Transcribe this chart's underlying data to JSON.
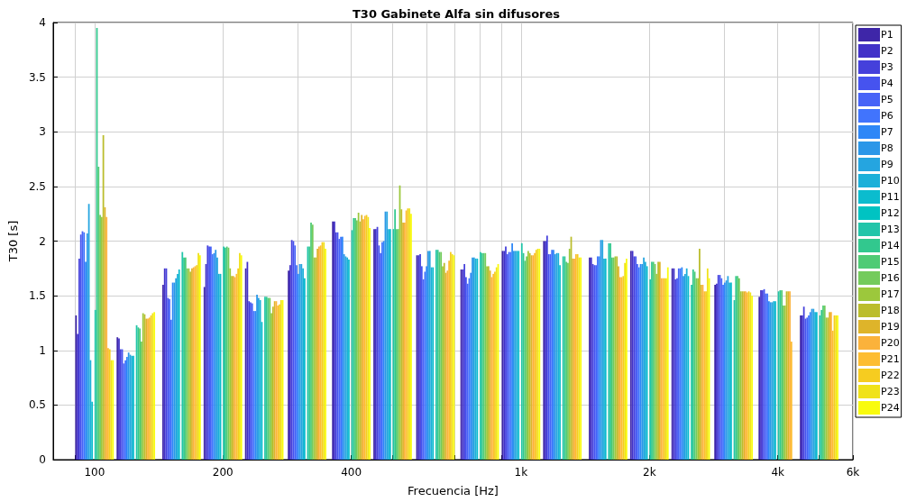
{
  "chart_data": {
    "type": "bar",
    "title": "T30 Gabinete Alfa sin difusores",
    "xlabel": "Frecuencia [Hz]",
    "ylabel": "T30 [s]",
    "x": [
      100,
      125,
      160,
      200,
      250,
      315,
      400,
      500,
      630,
      800,
      1000,
      1250,
      1600,
      2000,
      2500,
      3150,
      4000,
      5000
    ],
    "log": "x",
    "xlim": [
      80,
      6000
    ],
    "xticks": [
      {
        "value": 90,
        "label": null
      },
      100,
      200,
      {
        "value": 300,
        "label": null
      },
      400,
      {
        "value": 500,
        "label": null
      },
      {
        "value": 600,
        "label": null
      },
      {
        "value": 700,
        "label": null
      },
      {
        "value": 800,
        "label": null
      },
      {
        "value": 900,
        "label": null
      },
      {
        "value": 1000,
        "label": "1k"
      },
      {
        "value": 2000,
        "label": "2k"
      },
      {
        "value": 3000,
        "label": null
      },
      {
        "value": 4000,
        "label": "4k"
      },
      {
        "value": 5000,
        "label": null
      },
      {
        "value": 6000,
        "label": "6k"
      }
    ],
    "ylim": [
      0,
      4
    ],
    "yticks": [
      0,
      0.5,
      1,
      1.5,
      2,
      2.5,
      3,
      3.5,
      4
    ],
    "grid": true,
    "legend": "right",
    "series": [
      {
        "name": "P1",
        "color": "#3e26a8",
        "values": [
          1.32,
          1.12,
          1.6,
          1.58,
          1.75,
          1.73,
          2.18,
          2.11,
          1.87,
          1.74,
          1.91,
          2.0,
          1.85,
          1.91,
          1.75,
          1.6,
          1.49,
          1.32
        ]
      },
      {
        "name": "P2",
        "color": "#4232c8",
        "values": [
          1.15,
          1.11,
          1.75,
          1.79,
          1.81,
          1.78,
          2.18,
          2.11,
          1.87,
          1.74,
          1.91,
          2.0,
          1.85,
          1.91,
          1.75,
          1.61,
          1.55,
          1.32
        ]
      },
      {
        "name": "P3",
        "color": "#4540db",
        "values": [
          1.84,
          1.01,
          1.75,
          1.96,
          1.45,
          2.01,
          2.08,
          2.13,
          1.88,
          1.79,
          1.95,
          2.05,
          1.79,
          1.86,
          1.65,
          1.69,
          1.55,
          1.4
        ]
      },
      {
        "name": "P4",
        "color": "#4653ef",
        "values": [
          2.06,
          1.01,
          1.48,
          1.95,
          1.44,
          2.0,
          2.08,
          1.96,
          1.77,
          1.67,
          1.88,
          1.88,
          1.78,
          1.86,
          1.66,
          1.69,
          1.56,
          1.29
        ]
      },
      {
        "name": "P5",
        "color": "#4763f7",
        "values": [
          2.09,
          0.88,
          1.47,
          1.95,
          1.43,
          1.96,
          2.02,
          1.89,
          1.65,
          1.61,
          1.9,
          1.88,
          1.78,
          1.79,
          1.75,
          1.66,
          1.52,
          1.3
        ]
      },
      {
        "name": "P6",
        "color": "#4174fd",
        "values": [
          2.08,
          0.91,
          1.28,
          1.88,
          1.36,
          1.78,
          2.04,
          1.99,
          1.72,
          1.66,
          1.9,
          1.92,
          1.86,
          1.76,
          1.75,
          1.6,
          1.52,
          1.32
        ]
      },
      {
        "name": "P7",
        "color": "#2e87f7",
        "values": [
          1.81,
          0.94,
          1.62,
          1.89,
          1.36,
          1.7,
          2.04,
          2.0,
          1.77,
          1.71,
          1.98,
          1.92,
          1.86,
          1.79,
          1.76,
          1.62,
          1.45,
          1.35
        ]
      },
      {
        "name": "P8",
        "color": "#2b97e8",
        "values": [
          2.07,
          0.98,
          1.62,
          1.92,
          1.51,
          1.79,
          1.88,
          2.27,
          1.91,
          1.85,
          1.91,
          1.88,
          2.01,
          1.79,
          1.68,
          1.64,
          1.44,
          1.38
        ]
      },
      {
        "name": "P9",
        "color": "#25a5e0",
        "values": [
          2.34,
          0.96,
          1.66,
          1.85,
          1.48,
          1.79,
          1.86,
          2.27,
          1.91,
          1.85,
          1.91,
          1.89,
          2.01,
          1.85,
          1.7,
          1.68,
          1.44,
          1.38
        ]
      },
      {
        "name": "P10",
        "color": "#1cb0d9",
        "values": [
          0.91,
          0.95,
          1.7,
          1.7,
          1.46,
          1.75,
          1.85,
          2.11,
          1.76,
          1.84,
          1.91,
          1.89,
          1.84,
          1.81,
          1.75,
          1.62,
          1.45,
          1.35
        ]
      },
      {
        "name": "P11",
        "color": "#0bbcce",
        "values": [
          0.53,
          0.95,
          1.74,
          1.7,
          1.26,
          1.66,
          1.83,
          2.11,
          1.76,
          1.84,
          1.91,
          1.78,
          1.84,
          1.77,
          1.68,
          1.62,
          1.45,
          1.35
        ]
      },
      {
        "name": "P12",
        "color": "#00c3c2",
        "values": [
          null,
          null,
          null,
          null,
          null,
          null,
          null,
          null,
          null,
          null,
          null,
          null,
          null,
          null,
          null,
          null,
          null,
          null
        ]
      },
      {
        "name": "P13",
        "color": "#22c5a9",
        "values": [
          1.37,
          1.23,
          1.9,
          1.95,
          1.49,
          1.95,
          2.1,
          2.11,
          1.92,
          1.9,
          1.98,
          1.86,
          1.98,
          1.65,
          1.6,
          1.46,
          1.54,
          1.32
        ]
      },
      {
        "name": "P14",
        "color": "#32c88e",
        "values": [
          3.95,
          1.21,
          1.85,
          1.94,
          1.49,
          1.95,
          2.21,
          2.29,
          1.92,
          1.89,
          1.89,
          1.86,
          1.98,
          1.81,
          1.74,
          1.68,
          1.55,
          1.37
        ]
      },
      {
        "name": "P15",
        "color": "#4fcb75",
        "values": [
          2.68,
          1.2,
          1.85,
          1.95,
          1.48,
          2.17,
          2.21,
          2.11,
          1.9,
          1.89,
          1.82,
          1.81,
          1.85,
          1.81,
          1.72,
          1.68,
          1.55,
          1.41
        ]
      },
      {
        "name": "P16",
        "color": "#74cb5c",
        "values": [
          2.24,
          1.08,
          1.75,
          1.94,
          1.48,
          2.15,
          2.19,
          2.11,
          1.9,
          1.89,
          1.86,
          1.8,
          1.85,
          1.79,
          1.66,
          1.66,
          1.41,
          1.41
        ]
      },
      {
        "name": "P17",
        "color": "#9cc83c",
        "values": [
          2.22,
          1.34,
          1.75,
          1.75,
          1.34,
          1.85,
          2.26,
          2.51,
          1.77,
          1.77,
          1.91,
          1.93,
          1.86,
          1.7,
          1.66,
          1.54,
          1.41,
          1.3
        ]
      },
      {
        "name": "P18",
        "color": "#bbbd2c",
        "values": [
          2.97,
          1.33,
          1.72,
          1.68,
          1.4,
          1.85,
          2.18,
          2.29,
          1.8,
          1.77,
          1.89,
          2.04,
          1.86,
          1.81,
          1.93,
          1.54,
          1.54,
          1.3
        ]
      },
      {
        "name": "P19",
        "color": "#deb42a",
        "values": [
          2.31,
          1.29,
          1.75,
          1.68,
          1.45,
          1.93,
          2.24,
          2.17,
          1.71,
          1.73,
          1.87,
          1.84,
          1.77,
          1.81,
          1.6,
          1.54,
          1.54,
          1.35
        ]
      },
      {
        "name": "P20",
        "color": "#fbb23b",
        "values": [
          2.22,
          1.29,
          1.76,
          1.67,
          1.45,
          1.95,
          2.2,
          2.17,
          1.73,
          1.67,
          1.87,
          1.84,
          1.67,
          1.66,
          1.6,
          1.54,
          1.54,
          1.35
        ]
      },
      {
        "name": "P21",
        "color": "#fdbd32",
        "values": [
          1.02,
          1.3,
          1.77,
          1.7,
          1.41,
          1.96,
          2.23,
          2.28,
          1.82,
          1.7,
          1.89,
          1.88,
          1.67,
          1.66,
          1.54,
          1.53,
          1.08,
          1.18
        ]
      },
      {
        "name": "P22",
        "color": "#f6cc20",
        "values": [
          1.01,
          1.32,
          1.78,
          1.75,
          1.42,
          1.99,
          2.24,
          2.3,
          1.9,
          1.72,
          1.92,
          1.88,
          1.68,
          1.66,
          1.54,
          1.54,
          0,
          1.32
        ]
      },
      {
        "name": "P23",
        "color": "#f0e21a",
        "values": [
          0.91,
          1.34,
          1.89,
          1.89,
          1.46,
          1.99,
          2.22,
          2.3,
          1.88,
          1.76,
          1.93,
          1.85,
          1.8,
          1.66,
          1.75,
          1.53,
          0,
          1.32
        ]
      },
      {
        "name": "P24",
        "color": "#f9fb0e",
        "values": [
          0.91,
          1.35,
          1.87,
          1.87,
          1.46,
          1.93,
          2.12,
          2.25,
          1.87,
          1.79,
          1.93,
          1.85,
          1.84,
          1.76,
          1.66,
          1.5,
          0,
          1.32
        ]
      }
    ]
  }
}
